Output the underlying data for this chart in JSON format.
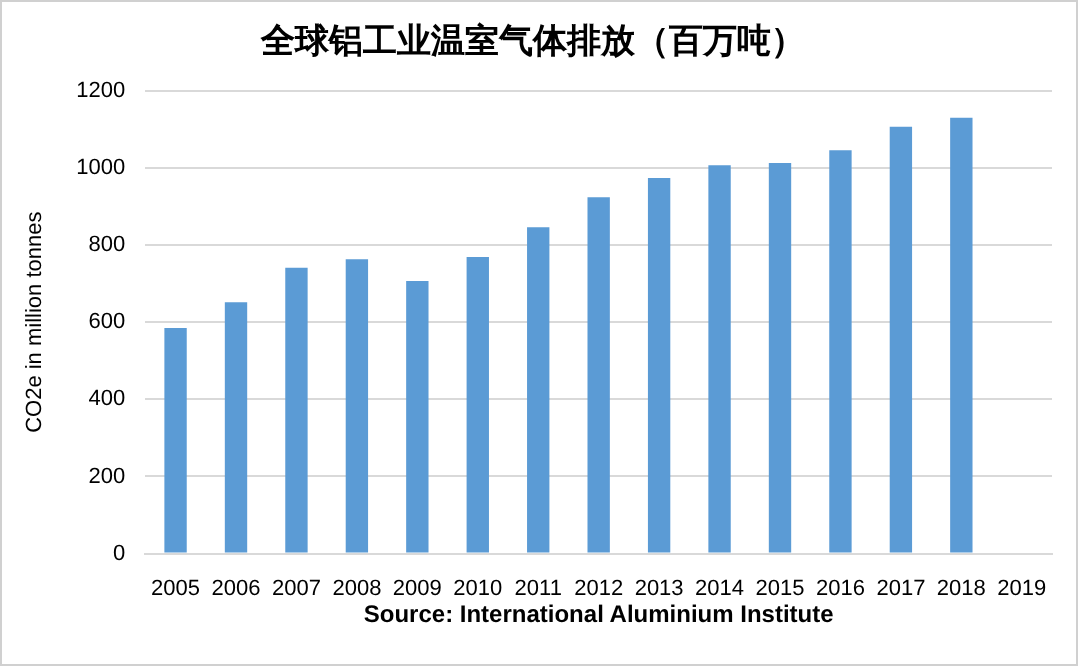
{
  "chart_data": {
    "type": "bar",
    "title": "全球铝工业温室气体排放（百万吨）",
    "ylabel": "CO2e in million tonnes",
    "categories": [
      "2005",
      "2006",
      "2007",
      "2008",
      "2009",
      "2010",
      "2011",
      "2012",
      "2013",
      "2014",
      "2015",
      "2016",
      "2017",
      "2018",
      "2019"
    ],
    "values": [
      585,
      652,
      741,
      763,
      707,
      769,
      846,
      924,
      974,
      1007,
      1013,
      1046,
      1107,
      1130,
      null
    ],
    "color": "#5b9bd5",
    "ylim": [
      0,
      1200
    ],
    "yticks": [
      0,
      200,
      400,
      600,
      800,
      1000,
      1200
    ],
    "grid": "y",
    "legend": false,
    "annotations": [
      "Source: International Aluminium Institute"
    ]
  }
}
